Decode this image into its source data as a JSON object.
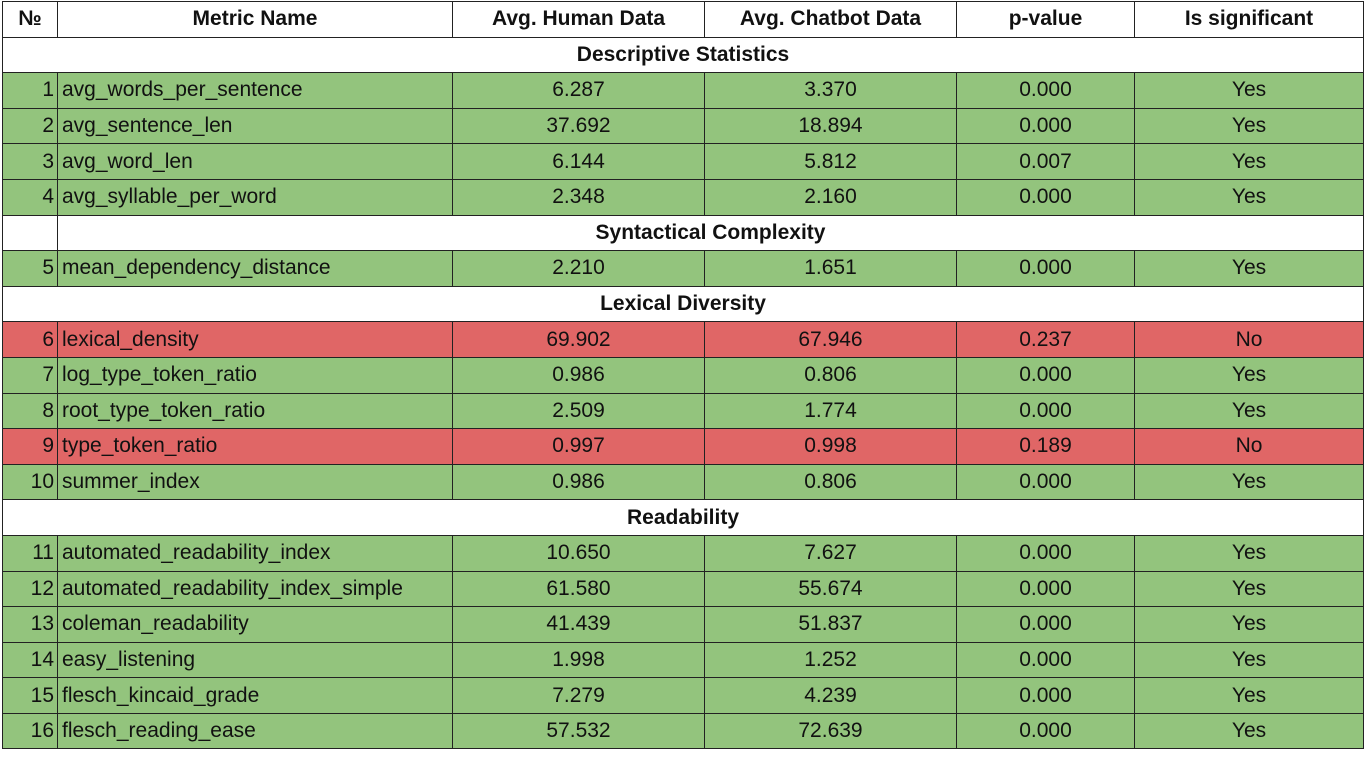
{
  "headers": {
    "num": "№",
    "metric": "Metric Name",
    "human": "Avg. Human Data",
    "chatbot": "Avg. Chatbot Data",
    "pvalue": "p-value",
    "significant": "Is significant"
  },
  "colors": {
    "significant_row": "#93c47d",
    "not_significant_row": "#e06666",
    "section_row": "#ffffff"
  },
  "sections": [
    {
      "title": "Descriptive Statistics",
      "rows": [
        {
          "num": "1",
          "metric": "avg_words_per_sentence",
          "human": "6.287",
          "chatbot": "3.370",
          "pvalue": "0.000",
          "significant": "Yes"
        },
        {
          "num": "2",
          "metric": "avg_sentence_len",
          "human": "37.692",
          "chatbot": "18.894",
          "pvalue": "0.000",
          "significant": "Yes"
        },
        {
          "num": "3",
          "metric": "avg_word_len",
          "human": "6.144",
          "chatbot": "5.812",
          "pvalue": "0.007",
          "significant": "Yes"
        },
        {
          "num": "4",
          "metric": "avg_syllable_per_word",
          "human": "2.348",
          "chatbot": "2.160",
          "pvalue": "0.000",
          "significant": "Yes"
        }
      ]
    },
    {
      "title": "Syntactical Complexity",
      "rows": [
        {
          "num": "5",
          "metric": "mean_dependency_distance",
          "human": "2.210",
          "chatbot": "1.651",
          "pvalue": "0.000",
          "significant": "Yes"
        }
      ]
    },
    {
      "title": "Lexical Diversity",
      "rows": [
        {
          "num": "6",
          "metric": "lexical_density",
          "human": "69.902",
          "chatbot": "67.946",
          "pvalue": "0.237",
          "significant": "No"
        },
        {
          "num": "7",
          "metric": "log_type_token_ratio",
          "human": "0.986",
          "chatbot": "0.806",
          "pvalue": "0.000",
          "significant": "Yes"
        },
        {
          "num": "8",
          "metric": "root_type_token_ratio",
          "human": "2.509",
          "chatbot": "1.774",
          "pvalue": "0.000",
          "significant": "Yes"
        },
        {
          "num": "9",
          "metric": "type_token_ratio",
          "human": "0.997",
          "chatbot": "0.998",
          "pvalue": "0.189",
          "significant": "No"
        },
        {
          "num": "10",
          "metric": "summer_index",
          "human": "0.986",
          "chatbot": "0.806",
          "pvalue": "0.000",
          "significant": "Yes"
        }
      ]
    },
    {
      "title": "Readability",
      "rows": [
        {
          "num": "11",
          "metric": "automated_readability_index",
          "human": "10.650",
          "chatbot": "7.627",
          "pvalue": "0.000",
          "significant": "Yes"
        },
        {
          "num": "12",
          "metric": "automated_readability_index_simple",
          "human": "61.580",
          "chatbot": "55.674",
          "pvalue": "0.000",
          "significant": "Yes"
        },
        {
          "num": "13",
          "metric": "coleman_readability",
          "human": "41.439",
          "chatbot": "51.837",
          "pvalue": "0.000",
          "significant": "Yes"
        },
        {
          "num": "14",
          "metric": "easy_listening",
          "human": "1.998",
          "chatbot": "1.252",
          "pvalue": "0.000",
          "significant": "Yes"
        },
        {
          "num": "15",
          "metric": "flesch_kincaid_grade",
          "human": "7.279",
          "chatbot": "4.239",
          "pvalue": "0.000",
          "significant": "Yes"
        },
        {
          "num": "16",
          "metric": "flesch_reading_ease",
          "human": "57.532",
          "chatbot": "72.639",
          "pvalue": "0.000",
          "significant": "Yes"
        }
      ]
    }
  ]
}
